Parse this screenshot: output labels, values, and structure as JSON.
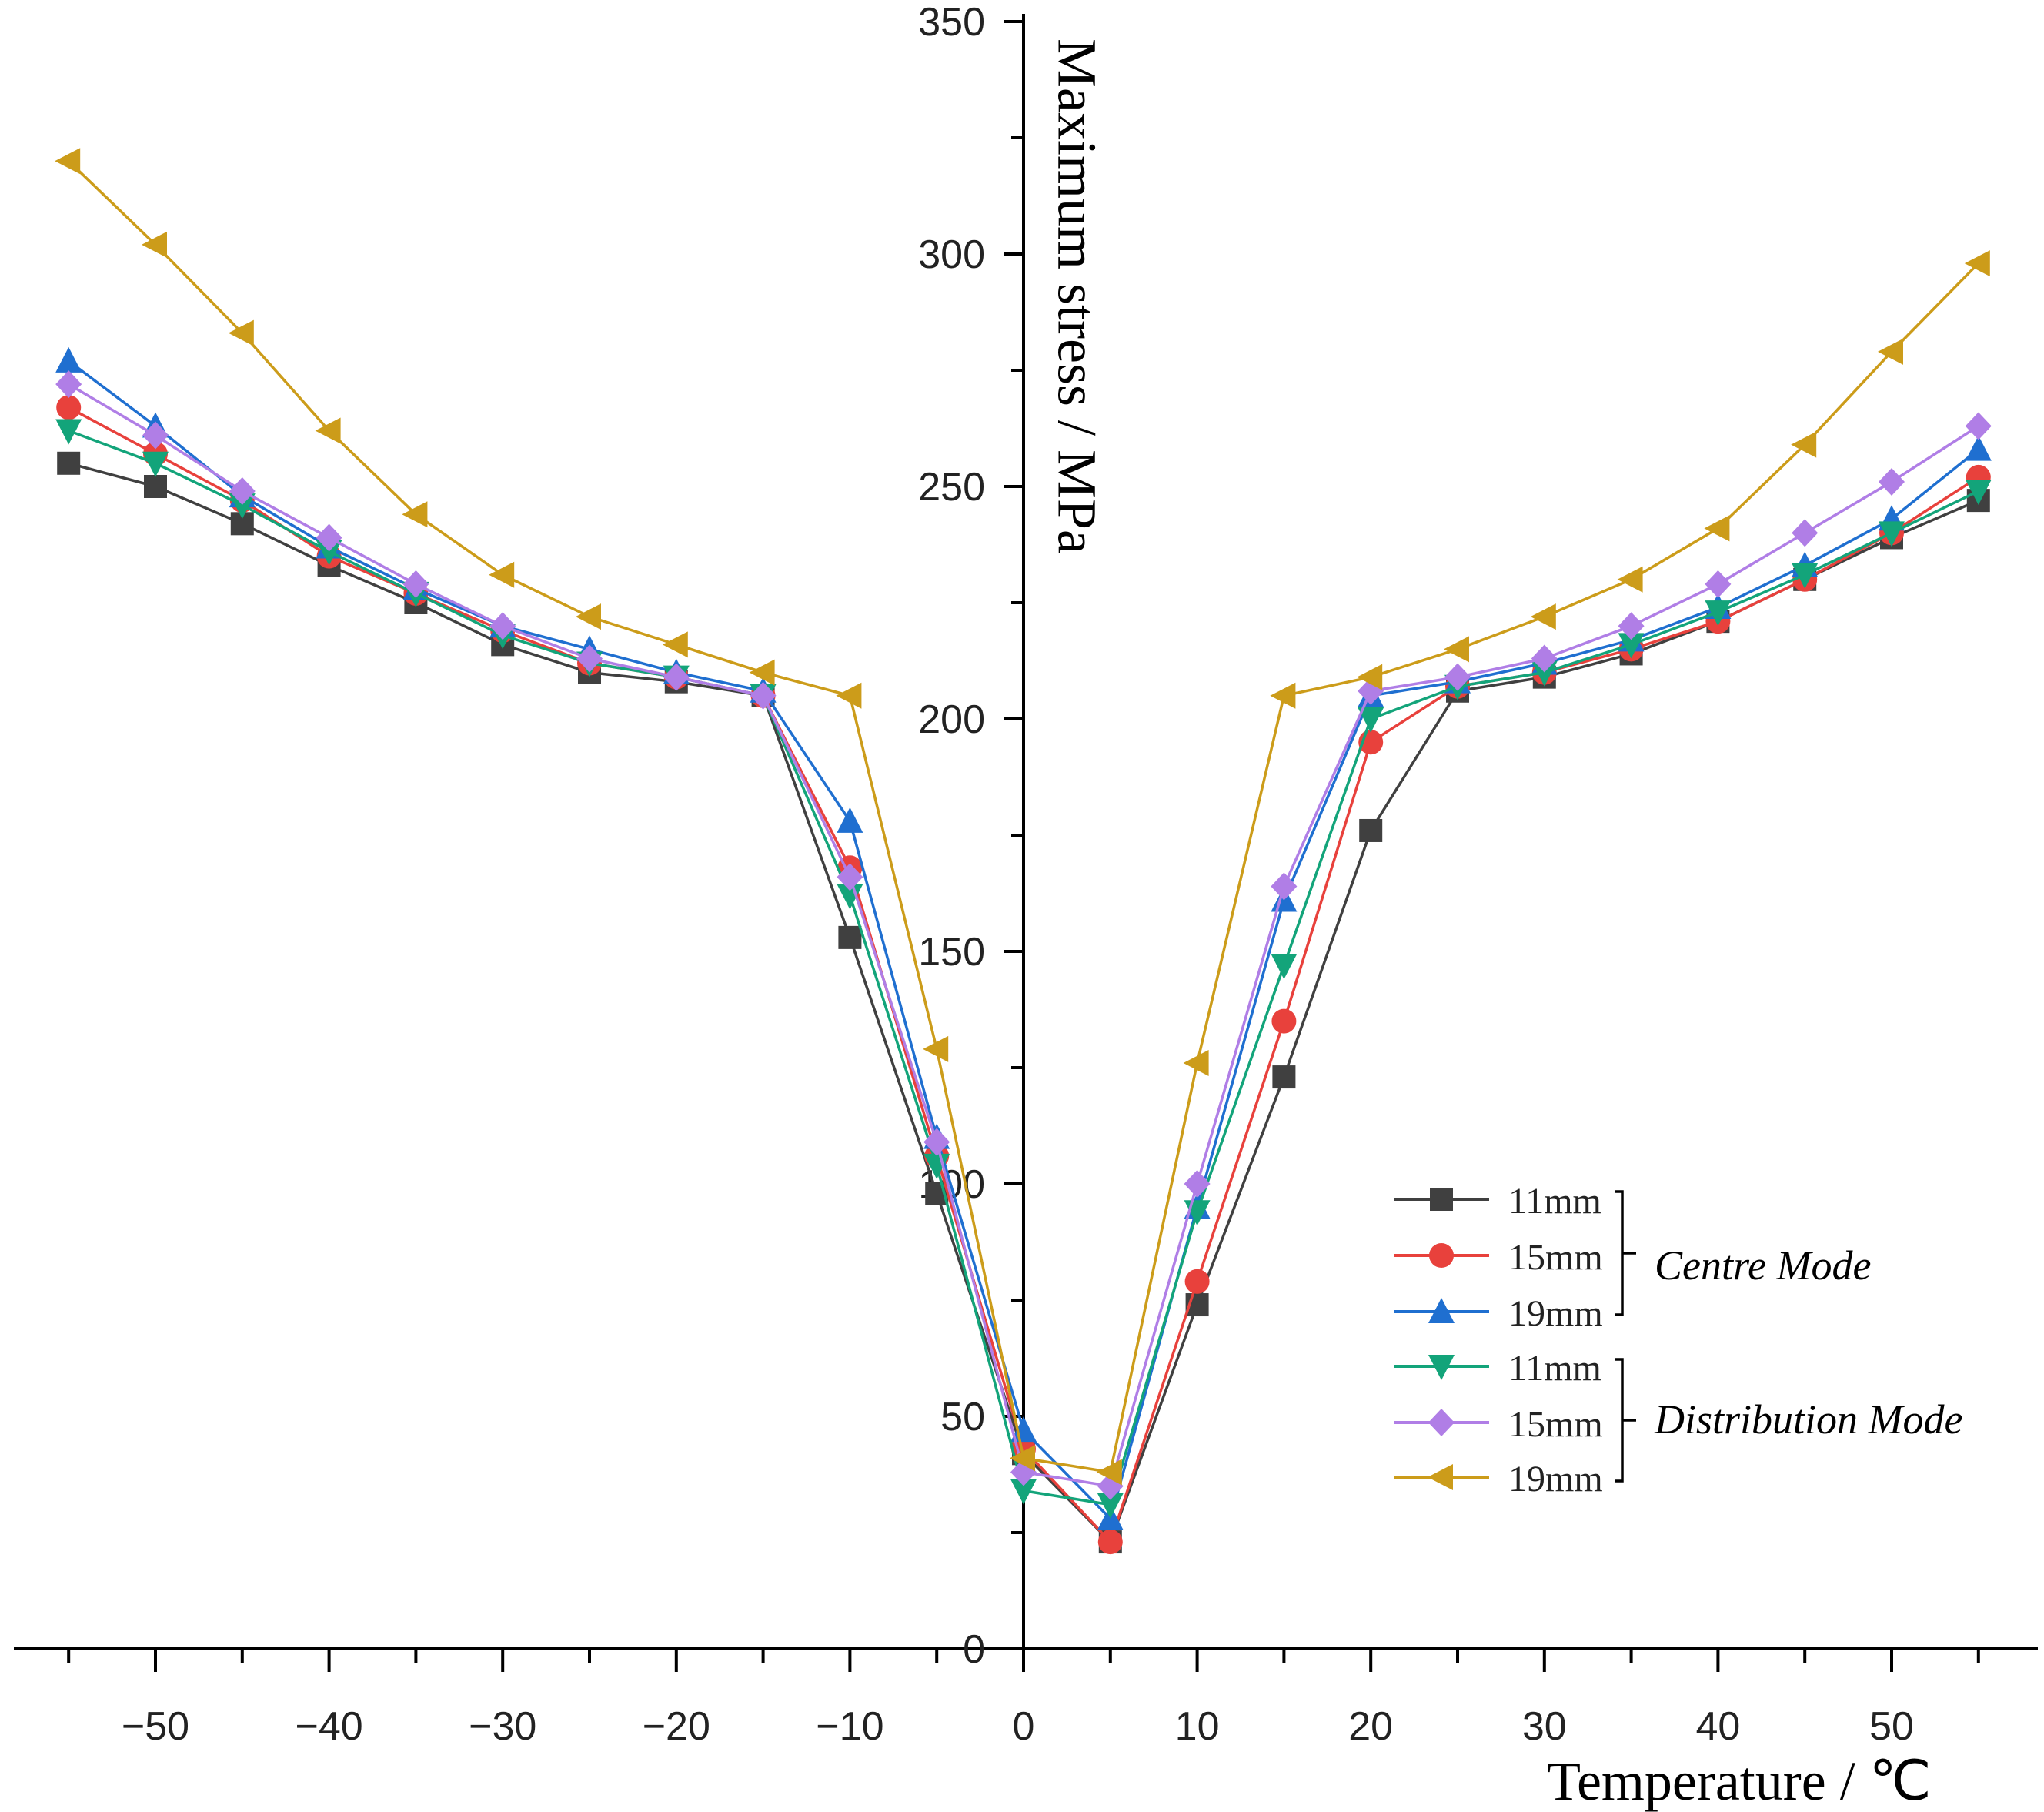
{
  "chart_data": {
    "type": "line",
    "title": "",
    "xlabel": "Temperature / ℃",
    "ylabel": "Maximum stress / MPa",
    "xlim": [
      -60,
      58
    ],
    "ylim": [
      0,
      350
    ],
    "x": [
      -55,
      -50,
      -45,
      -40,
      -35,
      -30,
      -25,
      -20,
      -15,
      -10,
      -5,
      0,
      5,
      10,
      15,
      20,
      25,
      30,
      35,
      40,
      45,
      50,
      55
    ],
    "x_ticks": [
      -50,
      -40,
      -30,
      -20,
      -10,
      0,
      10,
      20,
      30,
      40,
      50
    ],
    "x_tick_labels": [
      "-50",
      "-40",
      "-30",
      "-20",
      "-10",
      "0",
      "10",
      "20",
      "30",
      "40",
      "50"
    ],
    "y_ticks": [
      0,
      50,
      100,
      150,
      200,
      250,
      300,
      350
    ],
    "y_tick_labels": [
      "0",
      "50",
      "100",
      "150",
      "200",
      "250",
      "300",
      "350"
    ],
    "grid": false,
    "legend_position": "right",
    "legend_groups": [
      {
        "label": "Centre Mode",
        "series_indices": [
          0,
          1,
          2
        ]
      },
      {
        "label": "Distribution Mode",
        "series_indices": [
          3,
          4,
          5
        ]
      }
    ],
    "series": [
      {
        "name": "11mm",
        "group": "Centre Mode",
        "color": "#404040",
        "marker": "square",
        "values": [
          255,
          250,
          242,
          233,
          225,
          216,
          210,
          208,
          205,
          153,
          98,
          42,
          23,
          74,
          123,
          176,
          206,
          209,
          214,
          221,
          230,
          239,
          247
        ]
      },
      {
        "name": "15mm",
        "group": "Centre Mode",
        "color": "#e8413c",
        "marker": "circle",
        "values": [
          267,
          257,
          247,
          235,
          227,
          219,
          212,
          209,
          205,
          168,
          106,
          43,
          23,
          79,
          135,
          195,
          207,
          210,
          215,
          221,
          230,
          240,
          252
        ]
      },
      {
        "name": "19mm",
        "group": "Centre Mode",
        "color": "#1f6fd0",
        "marker": "triangle-up",
        "values": [
          277,
          263,
          248,
          237,
          228,
          220,
          215,
          210,
          206,
          178,
          110,
          47,
          28,
          95,
          161,
          205,
          208,
          212,
          217,
          224,
          233,
          243,
          258
        ]
      },
      {
        "name": "11mm",
        "group": "Distribution Mode",
        "color": "#13a47a",
        "marker": "triangle-down",
        "values": [
          262,
          255,
          246,
          236,
          227,
          218,
          212,
          209,
          205,
          162,
          104,
          34,
          31,
          94,
          147,
          200,
          207,
          210,
          216,
          223,
          231,
          240,
          249
        ]
      },
      {
        "name": "15mm",
        "group": "Distribution Mode",
        "color": "#b07ee6",
        "marker": "diamond",
        "values": [
          272,
          261,
          249,
          239,
          229,
          220,
          213,
          209,
          205,
          166,
          109,
          38,
          35,
          100,
          164,
          206,
          209,
          213,
          220,
          229,
          240,
          251,
          263
        ]
      },
      {
        "name": "19mm",
        "group": "Distribution Mode",
        "color": "#cc9c1a",
        "marker": "triangle-left",
        "values": [
          320,
          302,
          283,
          262,
          244,
          231,
          222,
          216,
          210,
          205,
          129,
          41,
          38,
          126,
          205,
          209,
          215,
          222,
          230,
          241,
          259,
          279,
          298
        ]
      }
    ]
  }
}
